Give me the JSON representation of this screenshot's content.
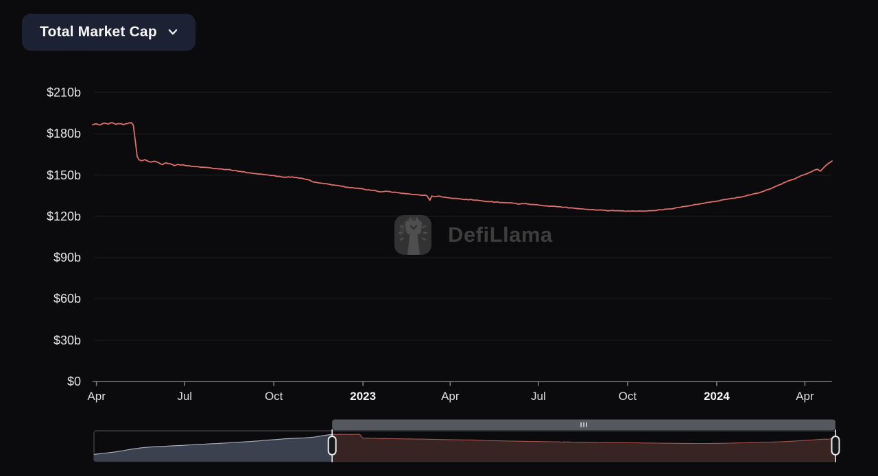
{
  "header": {
    "selector_label": "Total Market Cap"
  },
  "watermark": {
    "text": "DefiLlama"
  },
  "colors": {
    "background": "#0b0b0d",
    "button_bg": "#1c2233",
    "button_text": "#f7f7f7",
    "line": "#e0716b",
    "grid": "#1f2023",
    "axis": "#7b7b7b",
    "tick_label": "#e3e3e3",
    "watermark_text": "#3d3d3d"
  },
  "chart_data": {
    "type": "line",
    "title": "Total Market Cap",
    "unit": "USD billions",
    "ylim": [
      0,
      210
    ],
    "grid": true,
    "legend": false,
    "y_ticks": [
      {
        "label": "$210b",
        "value": 210
      },
      {
        "label": "$180b",
        "value": 180
      },
      {
        "label": "$150b",
        "value": 150
      },
      {
        "label": "$120b",
        "value": 120
      },
      {
        "label": "$90b",
        "value": 90
      },
      {
        "label": "$60b",
        "value": 60
      },
      {
        "label": "$30b",
        "value": 30
      },
      {
        "label": "$0",
        "value": 0
      }
    ],
    "x_window": [
      "2022-03-28",
      "2024-04-29"
    ],
    "x_ticks": [
      {
        "label": "Apr",
        "date": "2022-04-01",
        "bold": false
      },
      {
        "label": "Jul",
        "date": "2022-07-01",
        "bold": false
      },
      {
        "label": "Oct",
        "date": "2022-10-01",
        "bold": false
      },
      {
        "label": "2023",
        "date": "2023-01-01",
        "bold": true
      },
      {
        "label": "Apr",
        "date": "2023-04-01",
        "bold": false
      },
      {
        "label": "Jul",
        "date": "2023-07-01",
        "bold": false
      },
      {
        "label": "Oct",
        "date": "2023-10-01",
        "bold": false
      },
      {
        "label": "2024",
        "date": "2024-01-01",
        "bold": true
      },
      {
        "label": "Apr",
        "date": "2024-04-01",
        "bold": false
      }
    ],
    "series": [
      {
        "name": "Total Market Cap",
        "color": "#e0716b",
        "points": [
          [
            "2022-03-28",
            186.5
          ],
          [
            "2022-04-01",
            187.2
          ],
          [
            "2022-04-05",
            186.4
          ],
          [
            "2022-04-09",
            187.8
          ],
          [
            "2022-04-13",
            187.0
          ],
          [
            "2022-04-17",
            188.1
          ],
          [
            "2022-04-21",
            186.8
          ],
          [
            "2022-04-25",
            187.3
          ],
          [
            "2022-04-29",
            186.6
          ],
          [
            "2022-05-03",
            187.4
          ],
          [
            "2022-05-07",
            188.0
          ],
          [
            "2022-05-09",
            186.5
          ],
          [
            "2022-05-11",
            175.0
          ],
          [
            "2022-05-13",
            163.5
          ],
          [
            "2022-05-15",
            161.0
          ],
          [
            "2022-05-18",
            160.4
          ],
          [
            "2022-05-21",
            161.2
          ],
          [
            "2022-05-24",
            160.1
          ],
          [
            "2022-05-27",
            159.4
          ],
          [
            "2022-05-31",
            160.0
          ],
          [
            "2022-06-04",
            159.0
          ],
          [
            "2022-06-08",
            157.6
          ],
          [
            "2022-06-12",
            158.8
          ],
          [
            "2022-06-16",
            158.2
          ],
          [
            "2022-06-20",
            156.9
          ],
          [
            "2022-06-24",
            157.8
          ],
          [
            "2022-06-28",
            157.3
          ],
          [
            "2022-07-04",
            156.8
          ],
          [
            "2022-07-10",
            156.3
          ],
          [
            "2022-07-16",
            155.9
          ],
          [
            "2022-07-22",
            155.6
          ],
          [
            "2022-07-28",
            155.2
          ],
          [
            "2022-08-03",
            154.7
          ],
          [
            "2022-08-09",
            154.3
          ],
          [
            "2022-08-15",
            154.0
          ],
          [
            "2022-08-21",
            153.3
          ],
          [
            "2022-08-27",
            152.7
          ],
          [
            "2022-09-02",
            152.0
          ],
          [
            "2022-09-08",
            151.4
          ],
          [
            "2022-09-14",
            150.9
          ],
          [
            "2022-09-20",
            150.4
          ],
          [
            "2022-09-26",
            150.0
          ],
          [
            "2022-10-02",
            149.5
          ],
          [
            "2022-10-08",
            148.9
          ],
          [
            "2022-10-14",
            148.4
          ],
          [
            "2022-10-20",
            148.7
          ],
          [
            "2022-10-26",
            148.0
          ],
          [
            "2022-11-01",
            147.2
          ],
          [
            "2022-11-07",
            146.3
          ],
          [
            "2022-11-11",
            144.9
          ],
          [
            "2022-11-16",
            144.3
          ],
          [
            "2022-11-22",
            143.7
          ],
          [
            "2022-11-28",
            143.2
          ],
          [
            "2022-12-04",
            142.5
          ],
          [
            "2022-12-10",
            141.8
          ],
          [
            "2022-12-16",
            141.2
          ],
          [
            "2022-12-22",
            140.7
          ],
          [
            "2022-12-28",
            140.2
          ],
          [
            "2023-01-03",
            139.5
          ],
          [
            "2023-01-09",
            138.9
          ],
          [
            "2023-01-15",
            138.4
          ],
          [
            "2023-01-21",
            137.9
          ],
          [
            "2023-01-27",
            138.1
          ],
          [
            "2023-02-02",
            137.5
          ],
          [
            "2023-02-08",
            137.0
          ],
          [
            "2023-02-14",
            136.4
          ],
          [
            "2023-02-20",
            136.0
          ],
          [
            "2023-02-26",
            135.7
          ],
          [
            "2023-03-04",
            135.3
          ],
          [
            "2023-03-08",
            135.0
          ],
          [
            "2023-03-11",
            131.6
          ],
          [
            "2023-03-13",
            134.8
          ],
          [
            "2023-03-17",
            134.3
          ],
          [
            "2023-03-21",
            134.7
          ],
          [
            "2023-03-25",
            134.0
          ],
          [
            "2023-03-31",
            133.4
          ],
          [
            "2023-04-06",
            133.0
          ],
          [
            "2023-04-12",
            132.6
          ],
          [
            "2023-04-18",
            132.3
          ],
          [
            "2023-04-24",
            132.0
          ],
          [
            "2023-04-30",
            131.6
          ],
          [
            "2023-05-06",
            131.0
          ],
          [
            "2023-05-12",
            130.7
          ],
          [
            "2023-05-18",
            130.4
          ],
          [
            "2023-05-24",
            130.1
          ],
          [
            "2023-05-30",
            129.9
          ],
          [
            "2023-06-05",
            129.6
          ],
          [
            "2023-06-10",
            128.9
          ],
          [
            "2023-06-16",
            129.2
          ],
          [
            "2023-06-22",
            128.8
          ],
          [
            "2023-06-28",
            128.4
          ],
          [
            "2023-07-04",
            128.0
          ],
          [
            "2023-07-10",
            127.6
          ],
          [
            "2023-07-16",
            127.3
          ],
          [
            "2023-07-22",
            127.0
          ],
          [
            "2023-07-28",
            126.6
          ],
          [
            "2023-08-03",
            126.2
          ],
          [
            "2023-08-09",
            125.8
          ],
          [
            "2023-08-15",
            125.4
          ],
          [
            "2023-08-21",
            125.1
          ],
          [
            "2023-08-27",
            124.8
          ],
          [
            "2023-09-02",
            124.6
          ],
          [
            "2023-09-08",
            124.4
          ],
          [
            "2023-09-14",
            124.2
          ],
          [
            "2023-09-20",
            124.1
          ],
          [
            "2023-09-26",
            124.0
          ],
          [
            "2023-10-02",
            123.9
          ],
          [
            "2023-10-08",
            123.8
          ],
          [
            "2023-10-14",
            123.8
          ],
          [
            "2023-10-20",
            123.9
          ],
          [
            "2023-10-26",
            124.1
          ],
          [
            "2023-11-01",
            124.5
          ],
          [
            "2023-11-07",
            124.9
          ],
          [
            "2023-11-13",
            125.4
          ],
          [
            "2023-11-19",
            126.0
          ],
          [
            "2023-11-25",
            126.7
          ],
          [
            "2023-12-01",
            127.4
          ],
          [
            "2023-12-07",
            128.1
          ],
          [
            "2023-12-13",
            128.8
          ],
          [
            "2023-12-19",
            129.5
          ],
          [
            "2023-12-25",
            130.2
          ],
          [
            "2023-12-31",
            130.9
          ],
          [
            "2024-01-06",
            131.8
          ],
          [
            "2024-01-12",
            132.5
          ],
          [
            "2024-01-18",
            133.1
          ],
          [
            "2024-01-24",
            133.8
          ],
          [
            "2024-01-30",
            134.6
          ],
          [
            "2024-02-05",
            135.6
          ],
          [
            "2024-02-11",
            136.7
          ],
          [
            "2024-02-17",
            138.0
          ],
          [
            "2024-02-23",
            139.5
          ],
          [
            "2024-02-29",
            141.2
          ],
          [
            "2024-03-06",
            143.0
          ],
          [
            "2024-03-12",
            144.8
          ],
          [
            "2024-03-18",
            146.5
          ],
          [
            "2024-03-24",
            148.2
          ],
          [
            "2024-03-30",
            149.9
          ],
          [
            "2024-04-05",
            151.7
          ],
          [
            "2024-04-10",
            153.3
          ],
          [
            "2024-04-14",
            154.2
          ],
          [
            "2024-04-17",
            152.8
          ],
          [
            "2024-04-20",
            155.0
          ],
          [
            "2024-04-23",
            157.2
          ],
          [
            "2024-04-26",
            158.8
          ],
          [
            "2024-04-29",
            160.2
          ]
        ]
      }
    ],
    "brush": {
      "full_range": [
        "2021-04-01",
        "2024-04-29"
      ],
      "selected_window": [
        "2022-03-28",
        "2024-04-29"
      ],
      "history_points": [
        [
          "2021-04-01",
          48
        ],
        [
          "2021-04-15",
          55
        ],
        [
          "2021-05-01",
          64
        ],
        [
          "2021-05-15",
          74
        ],
        [
          "2021-06-01",
          87
        ],
        [
          "2021-06-15",
          95
        ],
        [
          "2021-07-01",
          101
        ],
        [
          "2021-07-15",
          104
        ],
        [
          "2021-08-01",
          108
        ],
        [
          "2021-08-15",
          111
        ],
        [
          "2021-09-01",
          116
        ],
        [
          "2021-09-15",
          119
        ],
        [
          "2021-10-01",
          123
        ],
        [
          "2021-10-15",
          126
        ],
        [
          "2021-11-01",
          131
        ],
        [
          "2021-11-15",
          135
        ],
        [
          "2021-12-01",
          140
        ],
        [
          "2021-12-15",
          145
        ],
        [
          "2022-01-01",
          151
        ],
        [
          "2022-01-15",
          156
        ],
        [
          "2022-02-01",
          160
        ],
        [
          "2022-02-15",
          163
        ],
        [
          "2022-03-01",
          168
        ],
        [
          "2022-03-14",
          178
        ],
        [
          "2022-03-21",
          183
        ]
      ],
      "colors": {
        "unselected_fill": "#3c4150",
        "unselected_line": "#aeb6c2",
        "selected_fill": "#382523",
        "selected_line": "#a2564f",
        "slider_bar": "#55585f",
        "handle_stroke": "#ececec",
        "border": "#47484c"
      }
    }
  }
}
